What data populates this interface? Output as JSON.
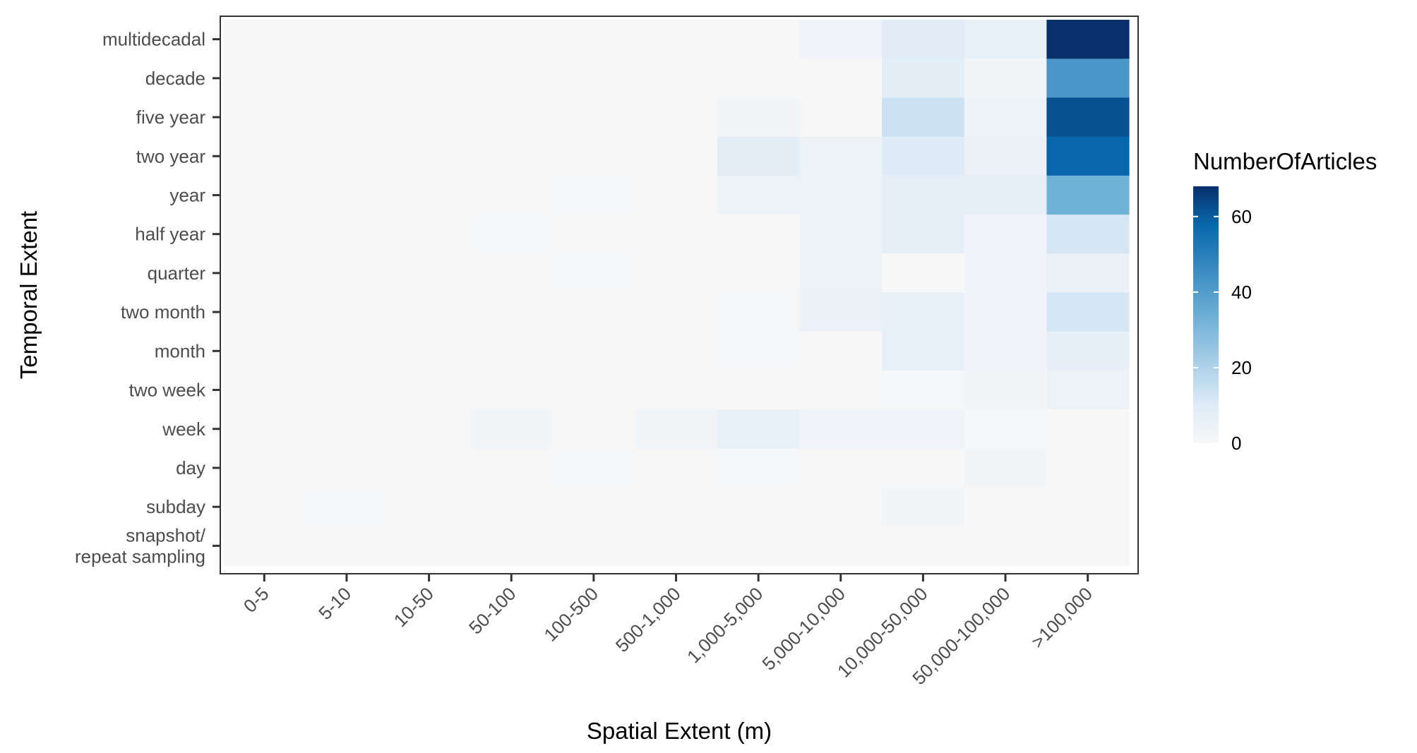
{
  "chart_data": {
    "type": "heatmap",
    "title": "",
    "xlabel": "Spatial Extent (m)",
    "ylabel": "Temporal Extent",
    "x_categories": [
      "0-5",
      "5-10",
      "10-50",
      "50-100",
      "100-500",
      "500-1,000",
      "1,000-5,000",
      "5,000-10,000",
      "10,000-50,000",
      "50,000-100,000",
      ">100,000"
    ],
    "y_categories": [
      "multidecadal",
      "decade",
      "five year",
      "two year",
      "year",
      "half year",
      "quarter",
      "two month",
      "month",
      "two week",
      "week",
      "day",
      "subday",
      "snapshot/\nrepeat sampling"
    ],
    "values": [
      [
        0,
        0,
        0,
        0,
        0,
        0,
        0,
        3,
        9,
        6,
        68
      ],
      [
        0,
        0,
        0,
        0,
        0,
        0,
        0,
        0,
        8,
        2,
        42
      ],
      [
        0,
        0,
        0,
        0,
        0,
        0,
        2,
        0,
        14,
        4,
        62
      ],
      [
        0,
        0,
        0,
        0,
        0,
        0,
        8,
        4,
        10,
        5,
        58
      ],
      [
        0,
        0,
        0,
        0,
        1,
        0,
        4,
        4,
        7,
        7,
        33
      ],
      [
        0,
        0,
        0,
        1,
        0,
        0,
        0,
        4,
        7,
        3,
        12
      ],
      [
        0,
        0,
        0,
        0,
        1,
        0,
        0,
        4,
        0,
        3,
        5
      ],
      [
        0,
        0,
        0,
        0,
        0,
        0,
        1,
        5,
        6,
        3,
        12
      ],
      [
        0,
        0,
        0,
        0,
        0,
        0,
        1,
        0,
        6,
        3,
        7
      ],
      [
        0,
        0,
        0,
        0,
        0,
        0,
        0,
        0,
        1,
        2,
        4
      ],
      [
        0,
        0,
        0,
        2,
        0,
        2,
        6,
        3,
        3,
        1,
        0
      ],
      [
        0,
        0,
        0,
        0,
        1,
        0,
        1,
        0,
        0,
        2,
        0
      ],
      [
        0,
        1,
        0,
        0,
        0,
        0,
        0,
        0,
        2,
        0,
        0
      ],
      [
        0,
        0,
        0,
        0,
        0,
        0,
        0,
        0,
        0,
        0,
        0
      ]
    ],
    "legend": {
      "title": "NumberOfArticles",
      "ticks": [
        0,
        20,
        40,
        60
      ],
      "range": [
        0,
        68
      ],
      "placement": "right"
    },
    "color_scale": {
      "low": "#f7f7f7",
      "mid1": "#deebf7",
      "mid2": "#6baed6",
      "mid3": "#0868ac",
      "high": "#08306b"
    },
    "grid": false,
    "panel_border": true
  }
}
